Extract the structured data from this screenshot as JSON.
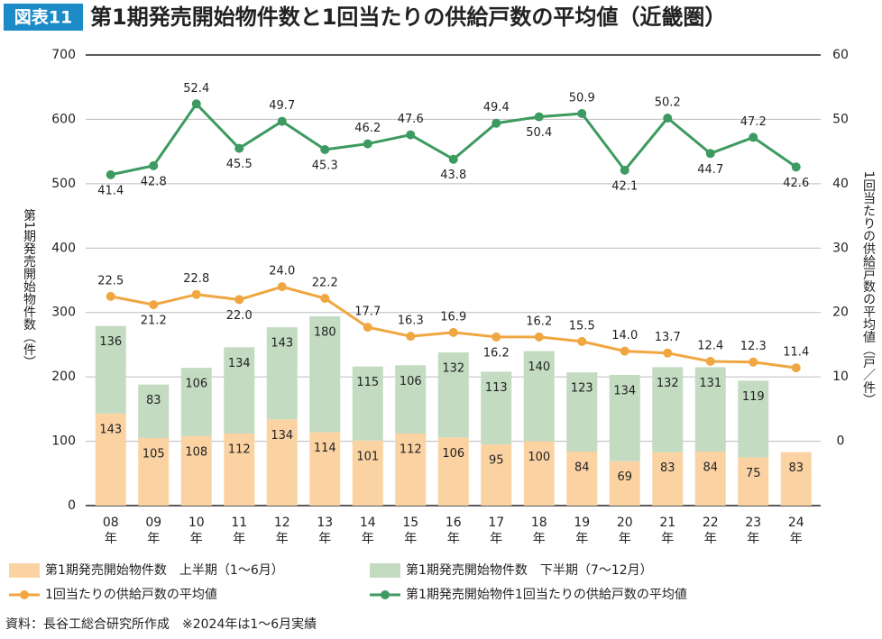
{
  "chart_data": {
    "type": "bar-line",
    "badge": "図表11",
    "title": "第1期発売開始物件数と1回当たりの供給戸数の平均値（近畿圏）",
    "y_label": "第1期発売開始物件数（件）",
    "y2_label": "1回当たりの供給戸数の平均値（戸／件）",
    "note": "資料：長谷工総合研究所作成　※2024年は1～6月実績",
    "categories": [
      "08年",
      "09年",
      "10年",
      "11年",
      "12年",
      "13年",
      "14年",
      "15年",
      "16年",
      "17年",
      "18年",
      "19年",
      "20年",
      "21年",
      "22年",
      "23年",
      "24年"
    ],
    "ylim": [
      0,
      700
    ],
    "yticks": [
      0,
      100,
      200,
      300,
      400,
      500,
      600,
      700
    ],
    "y2lim": [
      -10,
      60
    ],
    "y2ticks": [
      0,
      10,
      20,
      30,
      40,
      50,
      60
    ],
    "grid": true,
    "series": [
      {
        "name": "第1期発売開始物件数　上半期（1～6月）",
        "kind": "bar",
        "color": "#fbd3a3",
        "values": [
          143,
          105,
          108,
          112,
          134,
          114,
          101,
          112,
          106,
          95,
          100,
          84,
          69,
          83,
          84,
          75,
          83
        ]
      },
      {
        "name": "第1期発売開始物件数　下半期（7～12月）",
        "kind": "bar",
        "color": "#c3dbc1",
        "values": [
          136,
          83,
          106,
          134,
          143,
          180,
          115,
          106,
          132,
          113,
          140,
          123,
          134,
          132,
          131,
          119,
          null
        ]
      },
      {
        "name": "1回当たりの供給戸数の平均値",
        "kind": "line",
        "axis": "y2",
        "color": "#f0a641",
        "values": [
          22.5,
          21.2,
          22.8,
          22.0,
          24.0,
          22.2,
          17.7,
          16.3,
          16.9,
          16.2,
          16.2,
          15.5,
          14.0,
          13.7,
          12.4,
          12.3,
          11.4
        ],
        "value_labels": [
          "22.5",
          "21.2",
          "22.8",
          "22.0",
          "24.0",
          "22.2",
          "17.7",
          "16.3",
          "16.9",
          "16.2",
          "16.2",
          "15.5",
          "14.0",
          "13.7",
          "12.4",
          "12.3",
          "11.4"
        ]
      },
      {
        "name": "第1期発売開始物件1回当たりの供給戸数の平均値",
        "kind": "line",
        "axis": "y2",
        "color": "#3d9a60",
        "values": [
          41.4,
          42.8,
          52.4,
          45.5,
          49.7,
          45.3,
          46.2,
          47.6,
          43.8,
          49.4,
          50.4,
          50.9,
          42.1,
          50.2,
          44.7,
          47.2,
          42.6
        ],
        "value_labels": [
          "41.4",
          "42.8",
          "52.4",
          "45.5",
          "49.7",
          "45.3",
          "46.2",
          "47.6",
          "43.8",
          "49.4",
          "50.4",
          "50.9",
          "42.1",
          "50.2",
          "44.7",
          "47.2",
          "42.6"
        ]
      }
    ]
  }
}
